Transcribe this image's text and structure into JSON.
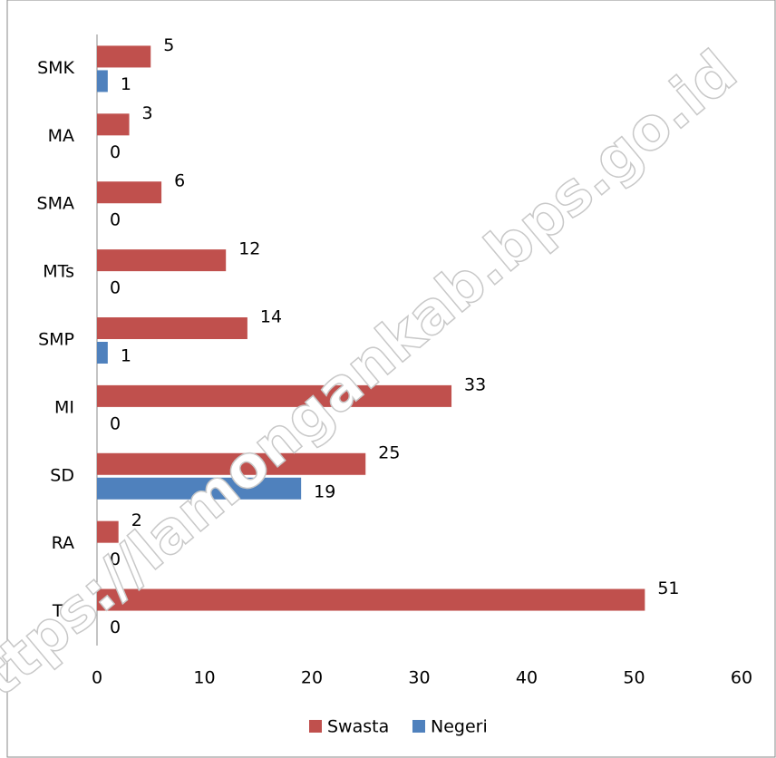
{
  "chart_data": {
    "type": "bar",
    "orientation": "horizontal",
    "categories": [
      "SMK",
      "MA",
      "SMA",
      "MTs",
      "SMP",
      "MI",
      "SD",
      "RA",
      "TK"
    ],
    "series": [
      {
        "name": "Swasta",
        "color": "#c0504d",
        "values": [
          5,
          3,
          6,
          12,
          14,
          33,
          25,
          2,
          51
        ]
      },
      {
        "name": "Negeri",
        "color": "#4f81bd",
        "values": [
          1,
          0,
          0,
          0,
          1,
          0,
          19,
          0,
          0
        ]
      }
    ],
    "xlim": [
      0,
      60
    ],
    "xticks": [
      0,
      10,
      20,
      30,
      40,
      50,
      60
    ],
    "legend": "bottom",
    "watermark": "https://lamongankab.bps.go.id"
  }
}
